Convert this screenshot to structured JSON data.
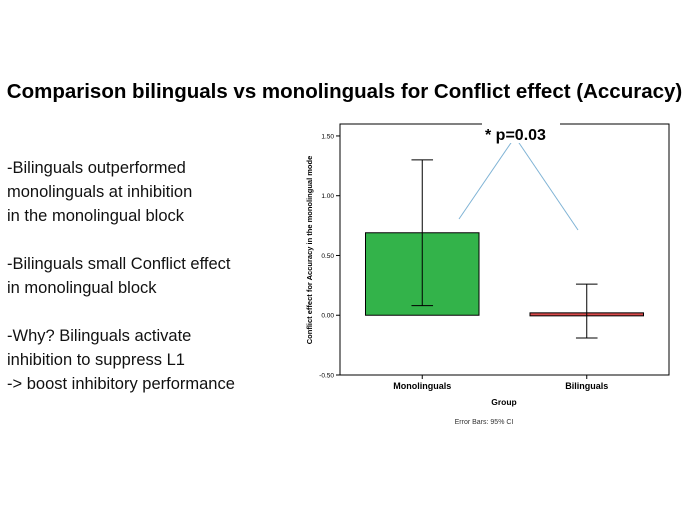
{
  "slide": {
    "title": "Comparison bilinguals vs monolinguals for Conflict effect (Accuracy)",
    "bullets": [
      "-Bilinguals outperformed\nmonolinguals at inhibition\nin the monolingual block",
      "-Bilinguals small Conflict effect\nin monolingual block",
      "-Why? Bilinguals activate\ninhibition to suppress L1\n-> boost inhibitory performance"
    ]
  },
  "annotation": {
    "text": "* p=0.03",
    "color": "#7fb3d5"
  },
  "chart_data": {
    "type": "bar",
    "categories": [
      "Monolinguals",
      "Bilinguals"
    ],
    "values": [
      0.69,
      0.02
    ],
    "error_low": [
      0.08,
      -0.19
    ],
    "error_high": [
      1.3,
      0.26
    ],
    "colors": [
      "#33b34a",
      "#d84a4a"
    ],
    "xlabel": "Group",
    "ylabel": "Conflict effect for Accuracy in the monolingual mode",
    "ylim": [
      -0.5,
      1.6
    ],
    "yticks": [
      -0.5,
      0.0,
      0.5,
      1.0,
      1.5
    ],
    "ytick_labels": [
      "-0.50",
      "0.00",
      "0.50",
      "1.00",
      "1.50"
    ],
    "footnote": "Error Bars: 95% CI",
    "grid": false
  }
}
